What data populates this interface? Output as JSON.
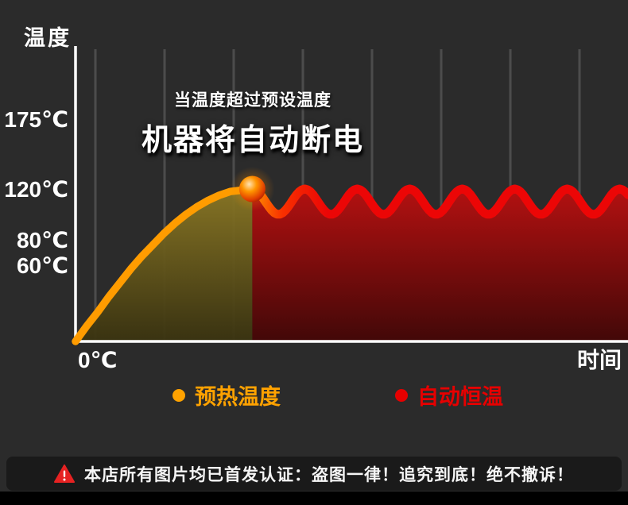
{
  "page": {
    "background": "#2b2b2b",
    "footer_background": "#000000"
  },
  "colors": {
    "grid": "#4c4c4c",
    "axis": "#ffffff",
    "preheat_orange": "#ff9c00",
    "constant_red": "#ec0606",
    "warning_red": "#e62222",
    "warning_bar_background": "#1a1a1a"
  },
  "chart": {
    "axis_title_y": "温度",
    "origin_label": "0℃",
    "x_axis_label": "时间",
    "annotation": {
      "line1": "当温度超过预设温度",
      "line2": "机器将自动断电"
    },
    "legend": [
      {
        "label": "预热温度",
        "color": "#ffa200"
      },
      {
        "label": "自动恒温",
        "color": "#e60000"
      }
    ]
  },
  "chart_data": {
    "type": "line",
    "title": "",
    "xlabel": "时间",
    "ylabel": "温度",
    "xlim": [
      0,
      10
    ],
    "ylim": [
      0,
      230
    ],
    "grid": true,
    "grid_divisions": 8,
    "legend_position": "bottom",
    "yticks": [
      {
        "value": 175,
        "label": "175℃"
      },
      {
        "value": 120,
        "label": "120℃"
      },
      {
        "value": 80,
        "label": "80℃"
      },
      {
        "value": 60,
        "label": "60℃"
      }
    ],
    "series": [
      {
        "name": "预热温度",
        "color": "#ff9c00",
        "x": [
          0,
          0.2,
          0.4,
          0.6,
          0.8,
          1.0,
          1.2,
          1.4,
          1.6,
          1.8,
          2.0,
          2.2,
          2.4,
          2.6,
          2.8,
          3.0,
          3.2
        ],
        "values": [
          0,
          12,
          23,
          35,
          46,
          57,
          67,
          76,
          85,
          93,
          100,
          106,
          111,
          115,
          118,
          119,
          120
        ]
      },
      {
        "name": "自动恒温",
        "color": "#ec0606",
        "wave": {
          "x_start": 3.2,
          "x_end": 10,
          "baseline": 110,
          "amplitude": 10,
          "period": 0.95,
          "step": 0.05
        }
      }
    ],
    "peak": {
      "x": 3.2,
      "value": 120
    }
  },
  "warning_bar": {
    "icon": "warning-triangle-icon",
    "text": "本店所有图片均已首发认证：盗图一律！追究到底！绝不撤诉！"
  }
}
